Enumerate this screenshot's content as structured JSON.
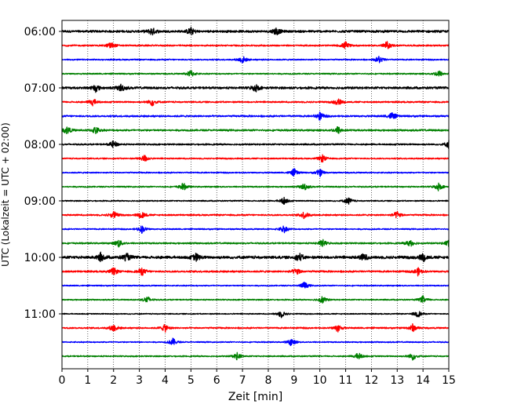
{
  "chart_data": {
    "type": "line",
    "title": "",
    "xlabel": "Zeit  [min]",
    "ylabel": "UTC (Lokalzeit = UTC + 02:00)",
    "xlim": [
      0,
      15
    ],
    "x_ticks": [
      "0",
      "1",
      "2",
      "3",
      "4",
      "5",
      "6",
      "7",
      "8",
      "9",
      "10",
      "11",
      "12",
      "13",
      "14",
      "15"
    ],
    "y_ticks": [
      "06:00",
      "07:00",
      "08:00",
      "09:00",
      "10:00",
      "11:00"
    ],
    "grid": "vertical dotted lines at each minute",
    "trace_colors": [
      "#000000",
      "#ff0000",
      "#0000ff",
      "#008000"
    ],
    "traces_per_hour": 4,
    "minutes_per_trace": 15,
    "series": [
      {
        "start": "06:00",
        "color": "#000000",
        "amplitude": 0.18,
        "events": [
          3.5,
          5.0,
          8.3
        ]
      },
      {
        "start": "06:15",
        "color": "#ff0000",
        "amplitude": 0.12,
        "events": [
          1.9,
          11.0,
          12.6
        ]
      },
      {
        "start": "06:30",
        "color": "#0000ff",
        "amplitude": 0.1,
        "events": [
          7.0,
          12.3
        ]
      },
      {
        "start": "06:45",
        "color": "#008000",
        "amplitude": 0.1,
        "events": [
          5.0,
          14.6
        ]
      },
      {
        "start": "07:00",
        "color": "#000000",
        "amplitude": 0.18,
        "events": [
          1.3,
          2.3,
          7.5
        ]
      },
      {
        "start": "07:15",
        "color": "#ff0000",
        "amplitude": 0.12,
        "events": [
          1.2,
          3.5,
          10.7
        ]
      },
      {
        "start": "07:30",
        "color": "#0000ff",
        "amplitude": 0.14,
        "events": [
          10.0,
          12.8
        ]
      },
      {
        "start": "07:45",
        "color": "#008000",
        "amplitude": 0.14,
        "events": [
          0.2,
          1.3,
          10.7
        ]
      },
      {
        "start": "08:00",
        "color": "#000000",
        "amplitude": 0.12,
        "events": [
          2.0,
          15.0
        ]
      },
      {
        "start": "08:15",
        "color": "#ff0000",
        "amplitude": 0.1,
        "events": [
          3.2,
          10.1
        ]
      },
      {
        "start": "08:30",
        "color": "#0000ff",
        "amplitude": 0.1,
        "events": [
          9.0,
          10.0
        ]
      },
      {
        "start": "08:45",
        "color": "#008000",
        "amplitude": 0.1,
        "events": [
          4.7,
          9.4,
          14.6
        ]
      },
      {
        "start": "09:00",
        "color": "#000000",
        "amplitude": 0.09,
        "events": [
          8.6,
          11.1
        ]
      },
      {
        "start": "09:15",
        "color": "#ff0000",
        "amplitude": 0.12,
        "events": [
          2.0,
          3.1,
          9.4,
          13.0
        ]
      },
      {
        "start": "09:30",
        "color": "#0000ff",
        "amplitude": 0.1,
        "events": [
          3.1,
          8.6
        ]
      },
      {
        "start": "09:45",
        "color": "#008000",
        "amplitude": 0.12,
        "events": [
          2.2,
          10.1,
          13.5,
          15.0
        ]
      },
      {
        "start": "10:00",
        "color": "#000000",
        "amplitude": 0.22,
        "events": [
          1.5,
          2.5,
          5.2,
          9.2,
          11.7,
          14.0
        ]
      },
      {
        "start": "10:15",
        "color": "#ff0000",
        "amplitude": 0.14,
        "events": [
          2.0,
          3.1,
          9.1,
          13.8
        ]
      },
      {
        "start": "10:30",
        "color": "#0000ff",
        "amplitude": 0.09,
        "events": [
          9.4
        ]
      },
      {
        "start": "10:45",
        "color": "#008000",
        "amplitude": 0.09,
        "events": [
          3.3,
          10.1,
          14.0
        ]
      },
      {
        "start": "11:00",
        "color": "#000000",
        "amplitude": 0.08,
        "events": [
          8.5,
          13.8
        ]
      },
      {
        "start": "11:15",
        "color": "#ff0000",
        "amplitude": 0.12,
        "events": [
          2.0,
          4.0,
          10.7,
          13.6
        ]
      },
      {
        "start": "11:30",
        "color": "#0000ff",
        "amplitude": 0.09,
        "events": [
          4.3,
          8.9
        ]
      },
      {
        "start": "11:45",
        "color": "#008000",
        "amplitude": 0.1,
        "events": [
          6.8,
          11.5,
          13.6
        ]
      }
    ]
  }
}
